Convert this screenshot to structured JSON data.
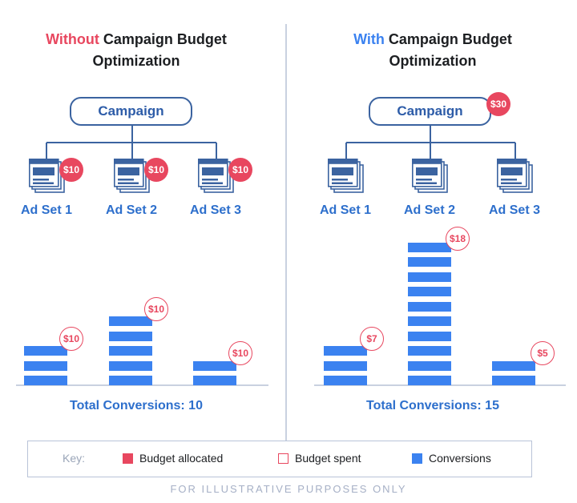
{
  "left": {
    "title_highlight": "Without",
    "title_rest": " Campaign Budget",
    "title_line2": "Optimization",
    "campaign_label": "Campaign",
    "adsets": [
      {
        "label": "Ad Set 1",
        "badge": "$10"
      },
      {
        "label": "Ad Set 2",
        "badge": "$10"
      },
      {
        "label": "Ad Set 3",
        "badge": "$10"
      }
    ],
    "bars": [
      {
        "spent": "$10",
        "conversions": 3
      },
      {
        "spent": "$10",
        "conversions": 5
      },
      {
        "spent": "$10",
        "conversions": 2
      }
    ],
    "total": "Total Conversions: 10"
  },
  "right": {
    "title_highlight": "With",
    "title_rest": " Campaign Budget",
    "title_line2": "Optimization",
    "campaign_label": "Campaign",
    "campaign_badge": "$30",
    "adsets": [
      {
        "label": "Ad Set 1"
      },
      {
        "label": "Ad Set 2"
      },
      {
        "label": "Ad Set 3"
      }
    ],
    "bars": [
      {
        "spent": "$7",
        "conversions": 3
      },
      {
        "spent": "$18",
        "conversions": 10
      },
      {
        "spent": "$5",
        "conversions": 2
      }
    ],
    "total": "Total Conversions: 15"
  },
  "key": {
    "label": "Key:",
    "items": [
      {
        "label": "Budget allocated",
        "swatch": "filled-red"
      },
      {
        "label": "Budget spent",
        "swatch": "outline-red"
      },
      {
        "label": "Conversions",
        "swatch": "filled-blue"
      }
    ]
  },
  "footnote": "FOR ILLUSTRATIVE PURPOSES ONLY",
  "colors": {
    "red": "#e8475f",
    "blue": "#3b82f0",
    "navy": "#3b63a0",
    "label_blue": "#2d6fcc"
  }
}
